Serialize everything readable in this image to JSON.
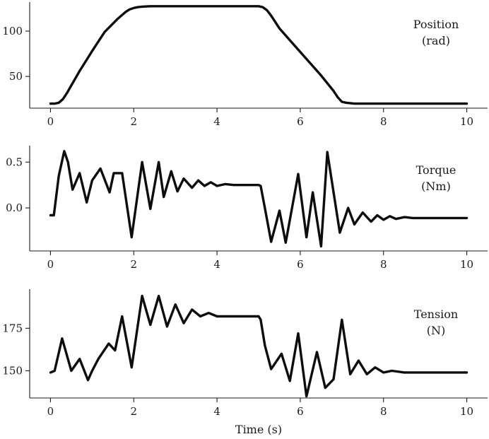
{
  "chart_data": [
    {
      "type": "line",
      "title": "",
      "xlabel": "",
      "ylabel": "",
      "series_label": [
        "Position",
        "(rad)"
      ],
      "xlim": [
        -0.5,
        10.5
      ],
      "ylim": [
        15,
        132
      ],
      "xticks": [
        0,
        2,
        4,
        6,
        8,
        10
      ],
      "yticks": [
        50,
        100
      ],
      "grid": false,
      "series": [
        {
          "x": [
            0,
            0.1,
            0.2,
            0.3,
            0.4,
            0.5,
            0.7,
            1.0,
            1.3,
            1.6,
            1.8,
            1.9,
            2.0,
            2.1,
            2.2,
            2.4,
            2.6,
            3.0,
            3.5,
            4.0,
            4.5,
            5.0,
            5.1,
            5.2,
            5.3,
            5.5,
            6.0,
            6.5,
            6.8,
            6.9,
            7.0,
            7.1,
            7.3,
            7.5,
            8.0,
            9.0,
            10.0
          ],
          "y": [
            20,
            20,
            21,
            25,
            32,
            40,
            56,
            78,
            99,
            113,
            121,
            124,
            125.5,
            126.5,
            127,
            127.5,
            127.5,
            127.5,
            127.5,
            127.5,
            127.5,
            127.5,
            126.5,
            123,
            117,
            103,
            77,
            51,
            34,
            27,
            22,
            21,
            20,
            20,
            20,
            20,
            20
          ]
        }
      ]
    },
    {
      "type": "line",
      "title": "",
      "xlabel": "",
      "ylabel": "",
      "series_label": [
        "Torque",
        "(Nm)"
      ],
      "xlim": [
        -0.5,
        10.5
      ],
      "ylim": [
        -0.47,
        0.68
      ],
      "xticks": [
        0,
        2,
        4,
        6,
        8,
        10
      ],
      "yticks": [
        0.0,
        0.5
      ],
      "grid": false,
      "series": [
        {
          "x": [
            0,
            0.08,
            0.2,
            0.33,
            0.42,
            0.53,
            0.7,
            0.87,
            1.0,
            1.2,
            1.42,
            1.52,
            1.72,
            1.95,
            2.2,
            2.4,
            2.6,
            2.72,
            2.9,
            3.05,
            3.2,
            3.4,
            3.55,
            3.7,
            3.85,
            4.0,
            4.2,
            4.4,
            4.6,
            4.8,
            5.0,
            5.05,
            5.15,
            5.3,
            5.5,
            5.65,
            5.95,
            6.15,
            6.3,
            6.5,
            6.65,
            6.95,
            7.15,
            7.3,
            7.5,
            7.7,
            7.85,
            8.0,
            8.15,
            8.3,
            8.5,
            8.7,
            9.0,
            9.5,
            10.0
          ],
          "y": [
            -0.08,
            -0.08,
            0.35,
            0.62,
            0.5,
            0.2,
            0.38,
            0.06,
            0.3,
            0.43,
            0.17,
            0.38,
            0.38,
            -0.32,
            0.5,
            -0.01,
            0.5,
            0.12,
            0.4,
            0.18,
            0.32,
            0.22,
            0.3,
            0.24,
            0.28,
            0.24,
            0.26,
            0.25,
            0.25,
            0.25,
            0.25,
            0.24,
            0.0,
            -0.37,
            -0.03,
            -0.38,
            0.37,
            -0.32,
            0.17,
            -0.42,
            0.61,
            -0.27,
            0.0,
            -0.18,
            -0.05,
            -0.15,
            -0.08,
            -0.13,
            -0.09,
            -0.12,
            -0.1,
            -0.11,
            -0.11,
            -0.11,
            -0.11
          ]
        }
      ]
    },
    {
      "type": "line",
      "title": "",
      "xlabel": "Time (s)",
      "ylabel": "",
      "series_label": [
        "Tension",
        "(N)"
      ],
      "xlim": [
        -0.5,
        10.5
      ],
      "ylim": [
        134,
        198
      ],
      "xticks": [
        0,
        2,
        4,
        6,
        8,
        10
      ],
      "yticks": [
        150,
        175
      ],
      "grid": false,
      "series": [
        {
          "x": [
            0,
            0.1,
            0.28,
            0.5,
            0.7,
            0.9,
            1.0,
            1.15,
            1.4,
            1.55,
            1.72,
            1.95,
            2.2,
            2.4,
            2.6,
            2.8,
            3.0,
            3.2,
            3.4,
            3.6,
            3.8,
            4.0,
            4.3,
            4.6,
            5.0,
            5.05,
            5.15,
            5.3,
            5.55,
            5.75,
            5.95,
            6.15,
            6.4,
            6.6,
            6.8,
            7.0,
            7.2,
            7.4,
            7.6,
            7.8,
            8.0,
            8.2,
            8.5,
            9.0,
            9.5,
            10.0
          ],
          "y": [
            149,
            150,
            169,
            150,
            157,
            144.5,
            150,
            157,
            166,
            162,
            182,
            152,
            194,
            177,
            194,
            176,
            189,
            178,
            186,
            182,
            184,
            182,
            182,
            182,
            182,
            180,
            165,
            151,
            160,
            144,
            172,
            135,
            161,
            140,
            145,
            180,
            148,
            156,
            148,
            152,
            149,
            150,
            149,
            149,
            149,
            149
          ]
        }
      ]
    }
  ]
}
